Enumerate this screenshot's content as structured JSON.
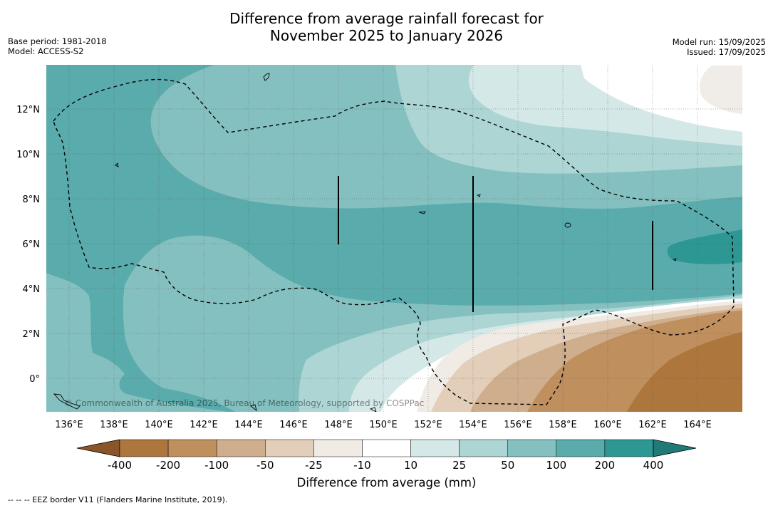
{
  "title_line1": "Difference from average rainfall forecast for",
  "title_line2": "November 2025 to January 2026",
  "base_period": "Base period: 1981-2018",
  "model": "Model: ACCESS-S2",
  "model_run": "Model run: 15/09/2025",
  "issued": "Issued: 17/09/2025",
  "copyright": "© Commonwealth of Australia 2025, Bureau of Meteorology, supported by COSPPac",
  "footer_note": "-- -- -- EEZ border V11 (Flanders Marine Institute, 2019).",
  "x_tick_labels": [
    "136°E",
    "138°E",
    "140°E",
    "142°E",
    "144°E",
    "146°E",
    "148°E",
    "150°E",
    "152°E",
    "154°E",
    "156°E",
    "158°E",
    "160°E",
    "162°E",
    "164°E"
  ],
  "y_tick_labels": [
    "12°N",
    "10°N",
    "8°N",
    "6°N",
    "4°N",
    "2°N",
    "0°"
  ],
  "colorbar": {
    "title": "Difference from average (mm)",
    "tick_labels": [
      "-400",
      "-200",
      "-100",
      "-50",
      "-25",
      "-10",
      "10",
      "25",
      "50",
      "100",
      "200",
      "400"
    ],
    "colors": [
      "#ad763c",
      "#bf8f5e",
      "#cfae8d",
      "#e2ceb9",
      "#f0ebe5",
      "#ffffff",
      "#d4e8e7",
      "#acd5d4",
      "#84c0bf",
      "#5aabab",
      "#2d9793"
    ],
    "extend_low_color": "#8a5529",
    "extend_high_color": "#207a76"
  },
  "colors": {
    "c200": "#5aabab",
    "c100": "#84c0bf",
    "c50": "#acd5d4",
    "c25": "#d4e8e7",
    "c10": "#ffffff",
    "n10": "#f0ebe5",
    "n25": "#e2ceb9",
    "n50": "#cfae8d",
    "n100": "#bf8f5e",
    "n200": "#ad763c",
    "c400": "#2d9793",
    "land_gray": "#f0ede8"
  }
}
